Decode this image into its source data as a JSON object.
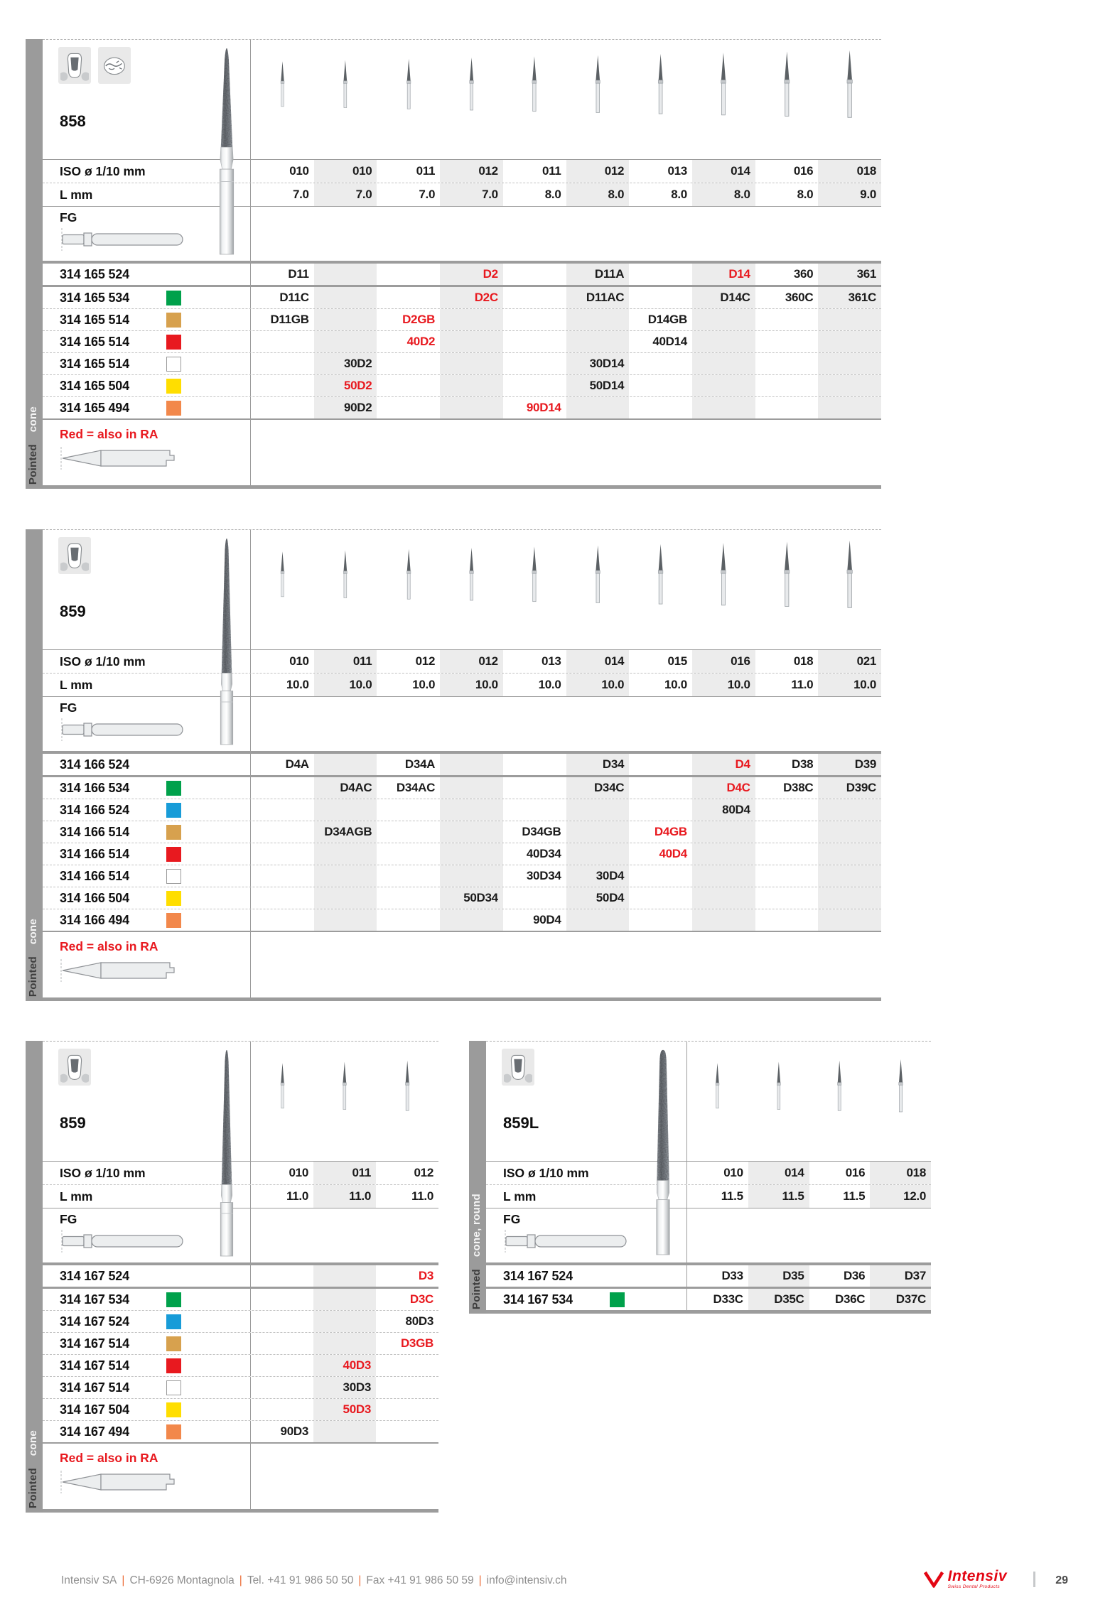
{
  "colors": {
    "accent_red": "#E8191F",
    "stripe": "#ECECEC",
    "sidebar_gray": "#9B9B9B",
    "swatch_green": "#00A14B",
    "swatch_blue": "#189CD8",
    "swatch_tan": "#D7A14E",
    "swatch_red": "#E8191F",
    "swatch_white": "#FFFFFF",
    "swatch_yellow": "#FFDE00",
    "swatch_orange": "#F2884B"
  },
  "tables": [
    {
      "key": "858",
      "title": "858",
      "sidebar_shape": "cone",
      "sidebar_base": "Pointed",
      "tooth_icons": [
        "tooth-prep-icon",
        "tooth-occlusal-icon"
      ],
      "iso_label": "ISO ø 1/10 mm",
      "l_label": "L mm",
      "fg_label": "FG",
      "note": "Red = also in RA",
      "iso": [
        "010",
        "010",
        "011",
        "012",
        "011",
        "012",
        "013",
        "014",
        "016",
        "018"
      ],
      "l": [
        "7.0",
        "7.0",
        "7.0",
        "7.0",
        "8.0",
        "8.0",
        "8.0",
        "8.0",
        "8.0",
        "9.0"
      ],
      "rows": [
        {
          "code": "314 165 524",
          "swatch": null,
          "cells": [
            {
              "t": "D11"
            },
            null,
            null,
            {
              "t": "D2",
              "red": true
            },
            null,
            {
              "t": "D11A"
            },
            null,
            {
              "t": "D14",
              "red": true
            },
            {
              "t": "360"
            },
            {
              "t": "361"
            }
          ]
        },
        {
          "code": "314 165 534",
          "swatch": "green",
          "cells": [
            {
              "t": "D11C"
            },
            null,
            null,
            {
              "t": "D2C",
              "red": true
            },
            null,
            {
              "t": "D11AC"
            },
            null,
            {
              "t": "D14C"
            },
            {
              "t": "360C"
            },
            {
              "t": "361C"
            }
          ]
        },
        {
          "code": "314 165 514",
          "swatch": "tan",
          "cells": [
            {
              "t": "D11GB"
            },
            null,
            {
              "t": "D2GB",
              "red": true
            },
            null,
            null,
            null,
            {
              "t": "D14GB"
            },
            null,
            null,
            null
          ]
        },
        {
          "code": "314 165 514",
          "swatch": "red",
          "cells": [
            null,
            null,
            {
              "t": "40D2",
              "red": true
            },
            null,
            null,
            null,
            {
              "t": "40D14"
            },
            null,
            null,
            null
          ]
        },
        {
          "code": "314 165 514",
          "swatch": "white",
          "cells": [
            null,
            {
              "t": "30D2"
            },
            null,
            null,
            null,
            {
              "t": "30D14"
            },
            null,
            null,
            null,
            null
          ]
        },
        {
          "code": "314 165 504",
          "swatch": "yellow",
          "cells": [
            null,
            {
              "t": "50D2",
              "red": true
            },
            null,
            null,
            null,
            {
              "t": "50D14"
            },
            null,
            null,
            null,
            null
          ]
        },
        {
          "code": "314 165 494",
          "swatch": "orange",
          "cells": [
            null,
            {
              "t": "90D2"
            },
            null,
            null,
            {
              "t": "90D14",
              "red": true
            },
            null,
            null,
            null,
            null,
            null
          ]
        }
      ]
    },
    {
      "key": "859-long",
      "title": "859",
      "sidebar_shape": "cone",
      "sidebar_base": "Pointed",
      "tooth_icons": [
        "tooth-prep-icon"
      ],
      "iso_label": "ISO ø 1/10 mm",
      "l_label": "L mm",
      "fg_label": "FG",
      "note": "Red = also in RA",
      "iso": [
        "010",
        "011",
        "012",
        "012",
        "013",
        "014",
        "015",
        "016",
        "018",
        "021"
      ],
      "l": [
        "10.0",
        "10.0",
        "10.0",
        "10.0",
        "10.0",
        "10.0",
        "10.0",
        "10.0",
        "11.0",
        "10.0"
      ],
      "rows": [
        {
          "code": "314 166 524",
          "swatch": null,
          "cells": [
            {
              "t": "D4A"
            },
            null,
            {
              "t": "D34A"
            },
            null,
            null,
            {
              "t": "D34"
            },
            null,
            {
              "t": "D4",
              "red": true
            },
            {
              "t": "D38"
            },
            {
              "t": "D39"
            }
          ]
        },
        {
          "code": "314 166 534",
          "swatch": "green",
          "cells": [
            null,
            {
              "t": "D4AC"
            },
            {
              "t": "D34AC"
            },
            null,
            null,
            {
              "t": "D34C"
            },
            null,
            {
              "t": "D4C",
              "red": true
            },
            {
              "t": "D38C"
            },
            {
              "t": "D39C"
            }
          ]
        },
        {
          "code": "314 166 524",
          "swatch": "blue",
          "cells": [
            null,
            null,
            null,
            null,
            null,
            null,
            null,
            {
              "t": "80D4"
            },
            null,
            null
          ]
        },
        {
          "code": "314 166 514",
          "swatch": "tan",
          "cells": [
            null,
            {
              "t": "D34AGB"
            },
            null,
            null,
            {
              "t": "D34GB"
            },
            null,
            {
              "t": "D4GB",
              "red": true
            },
            null,
            null,
            null
          ]
        },
        {
          "code": "314 166 514",
          "swatch": "red",
          "cells": [
            null,
            null,
            null,
            null,
            {
              "t": "40D34"
            },
            null,
            {
              "t": "40D4",
              "red": true
            },
            null,
            null,
            null
          ]
        },
        {
          "code": "314 166 514",
          "swatch": "white",
          "cells": [
            null,
            null,
            null,
            null,
            {
              "t": "30D34"
            },
            {
              "t": "30D4"
            },
            null,
            null,
            null,
            null
          ]
        },
        {
          "code": "314 166 504",
          "swatch": "yellow",
          "cells": [
            null,
            null,
            null,
            {
              "t": "50D34"
            },
            null,
            {
              "t": "50D4"
            },
            null,
            null,
            null,
            null
          ]
        },
        {
          "code": "314 166 494",
          "swatch": "orange",
          "cells": [
            null,
            null,
            null,
            null,
            {
              "t": "90D4"
            },
            null,
            null,
            null,
            null,
            null
          ]
        }
      ]
    },
    {
      "key": "859-short",
      "title": "859",
      "sidebar_shape": "cone",
      "sidebar_base": "Pointed",
      "tooth_icons": [
        "tooth-prep-icon"
      ],
      "iso_label": "ISO ø 1/10 mm",
      "l_label": "L mm",
      "fg_label": "FG",
      "note": "Red = also in RA",
      "iso": [
        "010",
        "011",
        "012"
      ],
      "l": [
        "11.0",
        "11.0",
        "11.0"
      ],
      "rows": [
        {
          "code": "314 167 524",
          "swatch": null,
          "cells": [
            null,
            null,
            {
              "t": "D3",
              "red": true
            }
          ]
        },
        {
          "code": "314 167 534",
          "swatch": "green",
          "cells": [
            null,
            null,
            {
              "t": "D3C",
              "red": true
            }
          ]
        },
        {
          "code": "314 167 524",
          "swatch": "blue",
          "cells": [
            null,
            null,
            {
              "t": "80D3"
            }
          ]
        },
        {
          "code": "314 167 514",
          "swatch": "tan",
          "cells": [
            null,
            null,
            {
              "t": "D3GB",
              "red": true
            }
          ]
        },
        {
          "code": "314 167 514",
          "swatch": "red",
          "cells": [
            null,
            {
              "t": "40D3",
              "red": true
            },
            null
          ]
        },
        {
          "code": "314 167 514",
          "swatch": "white",
          "cells": [
            null,
            {
              "t": "30D3"
            },
            null
          ]
        },
        {
          "code": "314 167 504",
          "swatch": "yellow",
          "cells": [
            null,
            {
              "t": "50D3",
              "red": true
            },
            null
          ]
        },
        {
          "code": "314 167 494",
          "swatch": "orange",
          "cells": [
            {
              "t": "90D3"
            },
            null,
            null
          ]
        }
      ]
    },
    {
      "key": "859L",
      "title": "859L",
      "sidebar_shape": "cone, round",
      "sidebar_base": "Pointed",
      "tooth_icons": [
        "tooth-prep-icon"
      ],
      "iso_label": "ISO ø 1/10 mm",
      "l_label": "L mm",
      "fg_label": "FG",
      "note": null,
      "iso": [
        "010",
        "014",
        "016",
        "018"
      ],
      "l": [
        "11.5",
        "11.5",
        "11.5",
        "12.0"
      ],
      "rows": [
        {
          "code": "314 167 524",
          "swatch": null,
          "cells": [
            {
              "t": "D33"
            },
            {
              "t": "D35"
            },
            {
              "t": "D36"
            },
            {
              "t": "D37"
            }
          ]
        },
        {
          "code": "314 167 534",
          "swatch": "green",
          "cells": [
            {
              "t": "D33C"
            },
            {
              "t": "D35C"
            },
            {
              "t": "D36C"
            },
            {
              "t": "D37C"
            }
          ]
        }
      ]
    }
  ],
  "footer": {
    "items": [
      "Intensiv SA",
      "CH-6926 Montagnola",
      "Tel. +41 91 986 50 50",
      "Fax +41 91 986 50 59",
      "info@intensiv.ch"
    ],
    "separator": "|",
    "logo_text": "Intensiv",
    "logo_tagline": "Swiss Dental Products",
    "page_number": "29"
  }
}
